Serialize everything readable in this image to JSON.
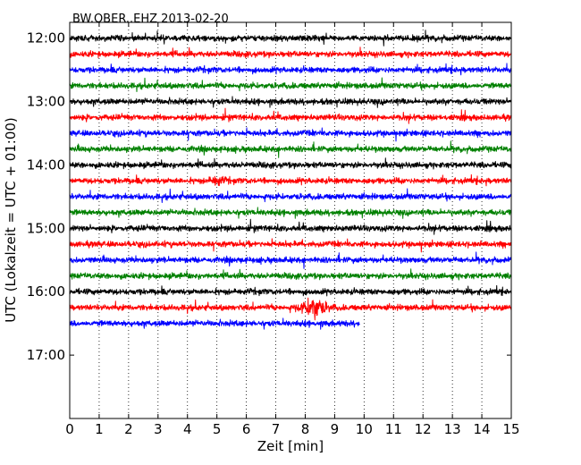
{
  "chart_data": {
    "type": "line",
    "title": "BW.OBER..EHZ 2013-02-20",
    "xlabel": "Zeit  [min]",
    "ylabel": "UTC (Lokalzeit = UTC + 01:00)",
    "xlim": [
      0,
      15
    ],
    "xticks": [
      0,
      1,
      2,
      3,
      4,
      5,
      6,
      7,
      8,
      9,
      10,
      11,
      12,
      13,
      14,
      15
    ],
    "ylim_hours": [
      11.75,
      18.0
    ],
    "yticks": [
      "12:00",
      "13:00",
      "14:00",
      "15:00",
      "16:00",
      "17:00"
    ],
    "grid": "vertical dotted",
    "trace_interval_min": 15,
    "colors": [
      "#000000",
      "#ff0000",
      "#0000ff",
      "#008000"
    ],
    "traces": [
      {
        "start": "12:00",
        "end_min": 15,
        "color": "#000000"
      },
      {
        "start": "12:15",
        "end_min": 15,
        "color": "#ff0000"
      },
      {
        "start": "12:30",
        "end_min": 15,
        "color": "#0000ff"
      },
      {
        "start": "12:45",
        "end_min": 15,
        "color": "#008000"
      },
      {
        "start": "13:00",
        "end_min": 15,
        "color": "#000000"
      },
      {
        "start": "13:15",
        "end_min": 15,
        "color": "#ff0000"
      },
      {
        "start": "13:30",
        "end_min": 15,
        "color": "#0000ff"
      },
      {
        "start": "13:45",
        "end_min": 15,
        "color": "#008000"
      },
      {
        "start": "14:00",
        "end_min": 15,
        "color": "#000000"
      },
      {
        "start": "14:15",
        "end_min": 15,
        "color": "#ff0000"
      },
      {
        "start": "14:30",
        "end_min": 15,
        "color": "#0000ff"
      },
      {
        "start": "14:45",
        "end_min": 15,
        "color": "#008000"
      },
      {
        "start": "15:00",
        "end_min": 15,
        "color": "#000000"
      },
      {
        "start": "15:15",
        "end_min": 15,
        "color": "#ff0000"
      },
      {
        "start": "15:30",
        "end_min": 15,
        "color": "#0000ff"
      },
      {
        "start": "15:45",
        "end_min": 15,
        "color": "#008000"
      },
      {
        "start": "16:00",
        "end_min": 15,
        "color": "#000000"
      },
      {
        "start": "16:15",
        "end_min": 15,
        "color": "#ff0000"
      },
      {
        "start": "16:30",
        "end_min": 9.85,
        "color": "#0000ff"
      }
    ]
  }
}
